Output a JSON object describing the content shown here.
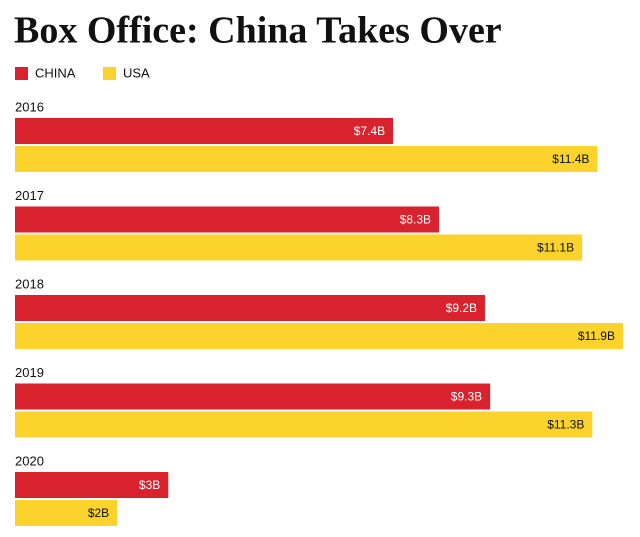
{
  "chart_data": {
    "type": "bar",
    "orientation": "horizontal",
    "title": "Box Office: China Takes Over",
    "categories": [
      "2016",
      "2017",
      "2018",
      "2019",
      "2020"
    ],
    "series": [
      {
        "name": "CHINA",
        "color": "#d8232f",
        "values": [
          7.4,
          8.3,
          9.2,
          9.3,
          3
        ],
        "value_labels": [
          "$7.4B",
          "$8.3B",
          "$9.2B",
          "$9.3B",
          "$3B"
        ]
      },
      {
        "name": "USA",
        "color": "#fbd32c",
        "values": [
          11.4,
          11.1,
          11.9,
          11.3,
          2
        ],
        "value_labels": [
          "$11.4B",
          "$11.1B",
          "$11.9B",
          "$11.3B",
          "$2B"
        ]
      }
    ]
  }
}
